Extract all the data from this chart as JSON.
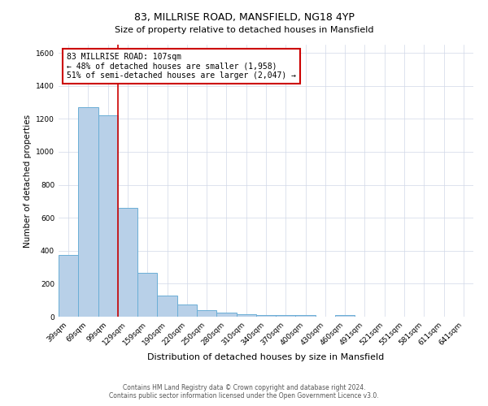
{
  "title": "83, MILLRISE ROAD, MANSFIELD, NG18 4YP",
  "subtitle": "Size of property relative to detached houses in Mansfield",
  "xlabel": "Distribution of detached houses by size in Mansfield",
  "ylabel": "Number of detached properties",
  "categories": [
    "39sqm",
    "69sqm",
    "99sqm",
    "129sqm",
    "159sqm",
    "190sqm",
    "220sqm",
    "250sqm",
    "280sqm",
    "310sqm",
    "340sqm",
    "370sqm",
    "400sqm",
    "430sqm",
    "460sqm",
    "491sqm",
    "521sqm",
    "551sqm",
    "581sqm",
    "611sqm",
    "641sqm"
  ],
  "values": [
    375,
    1270,
    1220,
    660,
    265,
    130,
    75,
    40,
    25,
    15,
    10,
    10,
    10,
    0,
    10,
    0,
    0,
    0,
    0,
    0,
    0
  ],
  "bar_color": "#b8d0e8",
  "bar_edge_color": "#6aaed6",
  "ylim": [
    0,
    1650
  ],
  "yticks": [
    0,
    200,
    400,
    600,
    800,
    1000,
    1200,
    1400,
    1600
  ],
  "property_line_x": 2.5,
  "property_line_color": "#cc0000",
  "annotation_text_line1": "83 MILLRISE ROAD: 107sqm",
  "annotation_text_line2": "← 48% of detached houses are smaller (1,958)",
  "annotation_text_line3": "51% of semi-detached houses are larger (2,047) →",
  "annotation_box_color": "#ffffff",
  "annotation_box_edge_color": "#cc0000",
  "footer_line1": "Contains HM Land Registry data © Crown copyright and database right 2024.",
  "footer_line2": "Contains public sector information licensed under the Open Government Licence v3.0.",
  "background_color": "#ffffff",
  "grid_color": "#d0d8e8",
  "title_fontsize": 9,
  "subtitle_fontsize": 8,
  "xlabel_fontsize": 8,
  "ylabel_fontsize": 7.5,
  "tick_fontsize": 6.5,
  "annotation_fontsize": 7,
  "footer_fontsize": 5.5
}
